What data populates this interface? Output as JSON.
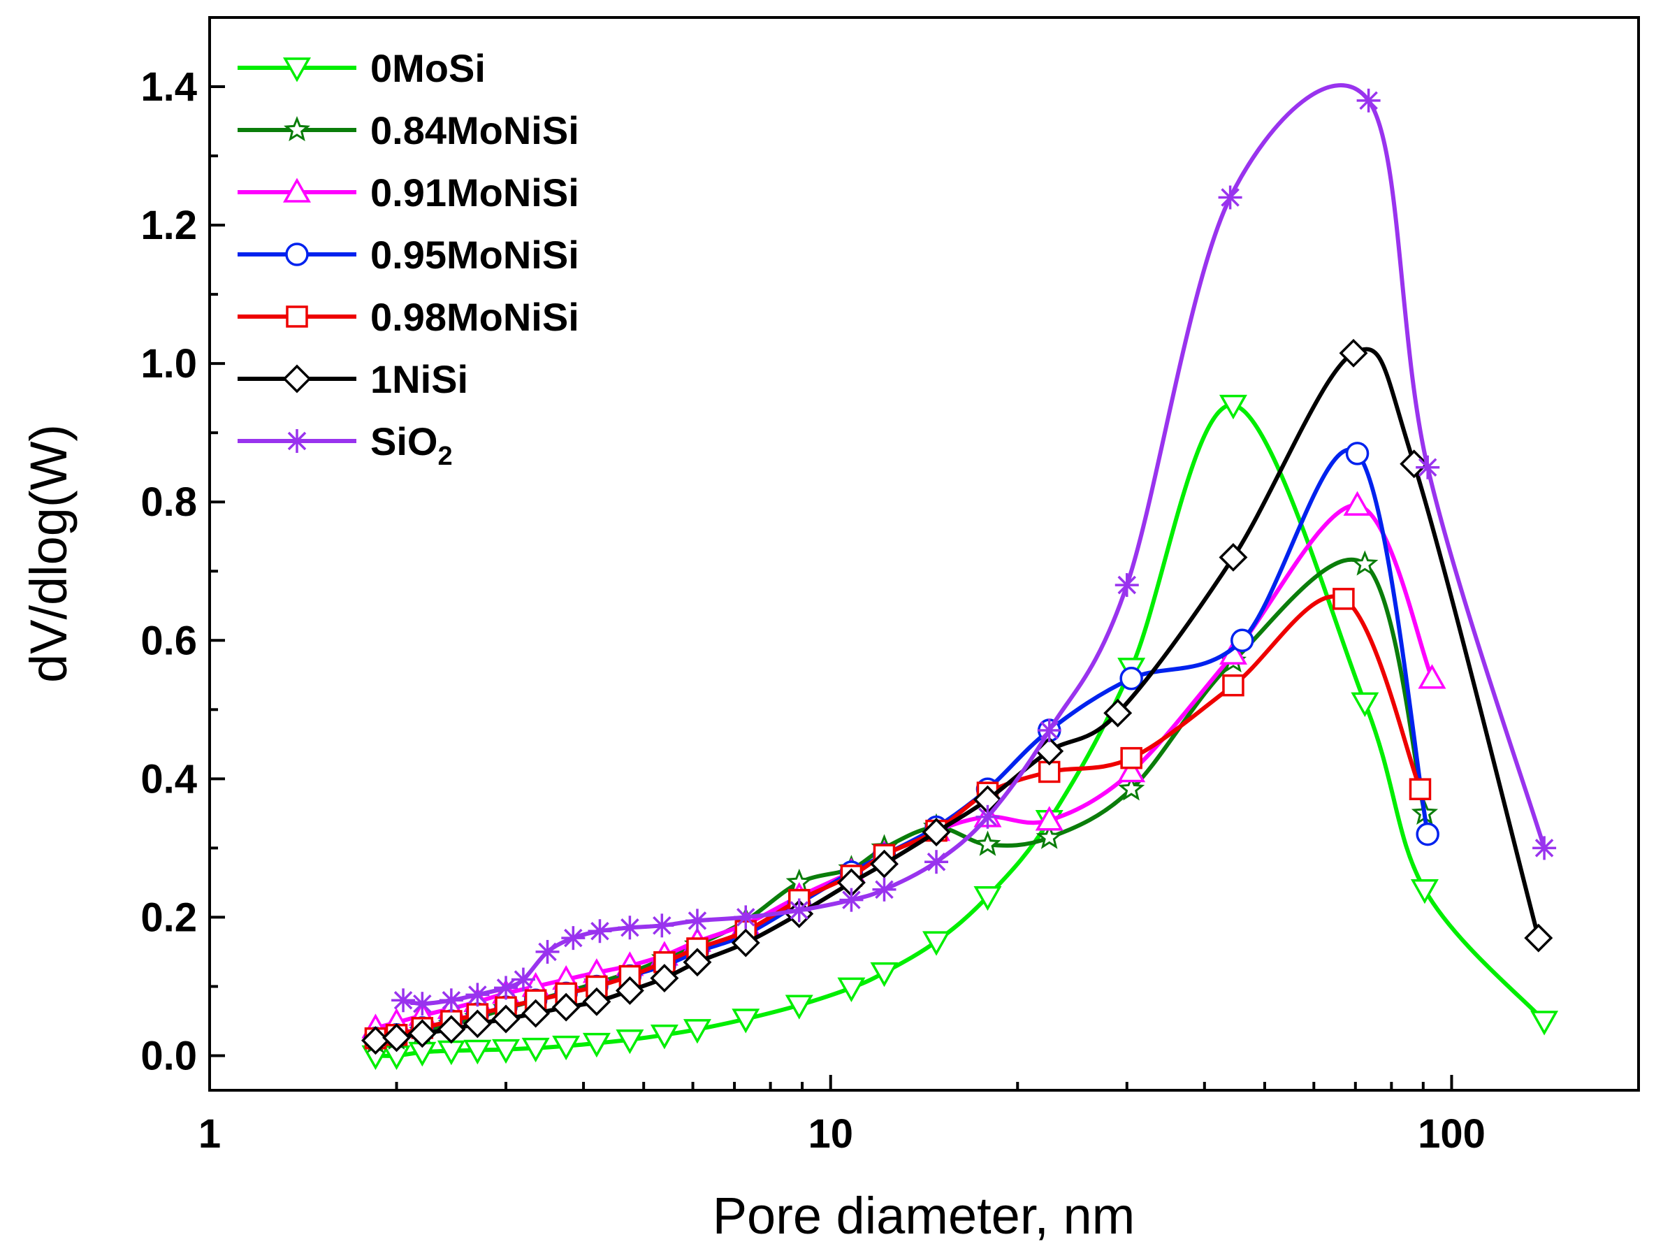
{
  "chart_data": {
    "type": "line",
    "title": "",
    "xlabel": "Pore diameter, nm",
    "ylabel": "dV/dlog(W)",
    "xscale": "log",
    "xlim": [
      1,
      200
    ],
    "ylim": [
      -0.05,
      1.5
    ],
    "xticks": [
      1,
      10,
      100
    ],
    "xtick_labels": [
      "1",
      "10",
      "100"
    ],
    "yticks": [
      0.0,
      0.2,
      0.4,
      0.6,
      0.8,
      1.0,
      1.2,
      1.4
    ],
    "ytick_labels": [
      "0.0",
      "0.2",
      "0.4",
      "0.6",
      "0.8",
      "1.0",
      "1.2",
      "1.4"
    ],
    "legend_position": "top-left",
    "series": [
      {
        "name": "0MoSi",
        "color": "#00ee00",
        "marker": "triangle-down",
        "x": [
          1.85,
          2.0,
          2.2,
          2.45,
          2.7,
          3.0,
          3.35,
          3.75,
          4.2,
          4.75,
          5.4,
          6.1,
          7.3,
          8.9,
          10.8,
          12.2,
          14.8,
          17.9,
          22.5,
          30.5,
          44.5,
          72.5,
          90.5,
          141
        ],
        "y": [
          0.0,
          0.0,
          0.005,
          0.007,
          0.008,
          0.009,
          0.011,
          0.014,
          0.018,
          0.023,
          0.03,
          0.038,
          0.053,
          0.073,
          0.098,
          0.12,
          0.165,
          0.23,
          0.34,
          0.56,
          0.94,
          0.51,
          0.24,
          0.05
        ]
      },
      {
        "name": "0.84MoNiSi",
        "color": "#0a7d0a",
        "marker": "star",
        "x": [
          1.85,
          2.0,
          2.2,
          2.45,
          2.7,
          3.0,
          3.35,
          3.75,
          4.2,
          4.75,
          5.4,
          6.1,
          7.3,
          8.9,
          10.8,
          12.2,
          14.8,
          17.9,
          22.5,
          30.5,
          44.5,
          72.5,
          90.5
        ],
        "y": [
          0.02,
          0.025,
          0.035,
          0.045,
          0.055,
          0.068,
          0.08,
          0.092,
          0.105,
          0.12,
          0.14,
          0.16,
          0.195,
          0.25,
          0.27,
          0.3,
          0.33,
          0.305,
          0.315,
          0.385,
          0.57,
          0.71,
          0.35
        ]
      },
      {
        "name": "0.91MoNiSi",
        "color": "#ff00ff",
        "marker": "triangle-up",
        "x": [
          1.85,
          2.0,
          2.2,
          2.45,
          2.7,
          3.0,
          3.35,
          3.75,
          4.2,
          4.75,
          5.4,
          6.1,
          7.3,
          8.9,
          10.8,
          12.2,
          14.8,
          17.9,
          22.5,
          30.5,
          44.5,
          70.5,
          93
        ],
        "y": [
          0.04,
          0.048,
          0.058,
          0.068,
          0.078,
          0.09,
          0.1,
          0.11,
          0.12,
          0.13,
          0.145,
          0.165,
          0.19,
          0.23,
          0.265,
          0.29,
          0.325,
          0.345,
          0.34,
          0.41,
          0.58,
          0.795,
          0.545
        ]
      },
      {
        "name": "0.95MoNiSi",
        "color": "#0022ee",
        "marker": "circle",
        "x": [
          1.85,
          2.0,
          2.2,
          2.45,
          2.7,
          3.0,
          3.35,
          3.75,
          4.2,
          4.75,
          5.4,
          6.1,
          7.3,
          8.9,
          10.8,
          12.2,
          14.8,
          17.9,
          22.5,
          30.5,
          46,
          70.5,
          91.5
        ],
        "y": [
          0.025,
          0.03,
          0.04,
          0.05,
          0.06,
          0.07,
          0.08,
          0.09,
          0.1,
          0.115,
          0.13,
          0.15,
          0.175,
          0.22,
          0.265,
          0.29,
          0.33,
          0.385,
          0.47,
          0.545,
          0.6,
          0.87,
          0.32
        ]
      },
      {
        "name": "0.98MoNiSi",
        "color": "#ee0000",
        "marker": "square",
        "x": [
          1.85,
          2.0,
          2.2,
          2.45,
          2.7,
          3.0,
          3.35,
          3.75,
          4.2,
          4.75,
          5.4,
          6.1,
          7.3,
          8.9,
          10.8,
          12.2,
          14.8,
          17.9,
          22.5,
          30.5,
          44.5,
          67,
          89
        ],
        "y": [
          0.025,
          0.03,
          0.04,
          0.05,
          0.06,
          0.07,
          0.08,
          0.09,
          0.1,
          0.115,
          0.135,
          0.155,
          0.18,
          0.225,
          0.26,
          0.29,
          0.325,
          0.38,
          0.41,
          0.43,
          0.535,
          0.66,
          0.385
        ]
      },
      {
        "name": "1NiSi",
        "color": "#000000",
        "marker": "diamond",
        "x": [
          1.85,
          2.0,
          2.2,
          2.45,
          2.7,
          3.0,
          3.35,
          3.75,
          4.2,
          4.75,
          5.4,
          6.1,
          7.3,
          8.9,
          10.8,
          12.2,
          14.8,
          17.9,
          22.5,
          29,
          44.5,
          69.5,
          87,
          138
        ],
        "y": [
          0.022,
          0.026,
          0.032,
          0.038,
          0.046,
          0.053,
          0.061,
          0.07,
          0.078,
          0.094,
          0.112,
          0.135,
          0.163,
          0.205,
          0.25,
          0.277,
          0.323,
          0.37,
          0.44,
          0.495,
          0.72,
          1.015,
          0.855,
          0.17
        ]
      },
      {
        "name": "SiO2",
        "color": "#9933ee",
        "marker": "asterisk",
        "x": [
          2.05,
          2.2,
          2.45,
          2.7,
          3.0,
          3.2,
          3.5,
          3.85,
          4.25,
          4.75,
          5.35,
          6.1,
          7.3,
          8.9,
          10.8,
          12.2,
          14.8,
          17.9,
          22.5,
          30.0,
          44.0,
          73.5,
          91.5,
          141
        ],
        "y": [
          0.08,
          0.075,
          0.08,
          0.088,
          0.098,
          0.11,
          0.15,
          0.17,
          0.18,
          0.185,
          0.188,
          0.195,
          0.2,
          0.21,
          0.225,
          0.24,
          0.28,
          0.345,
          0.47,
          0.68,
          1.24,
          1.38,
          0.85,
          0.3
        ]
      }
    ]
  }
}
